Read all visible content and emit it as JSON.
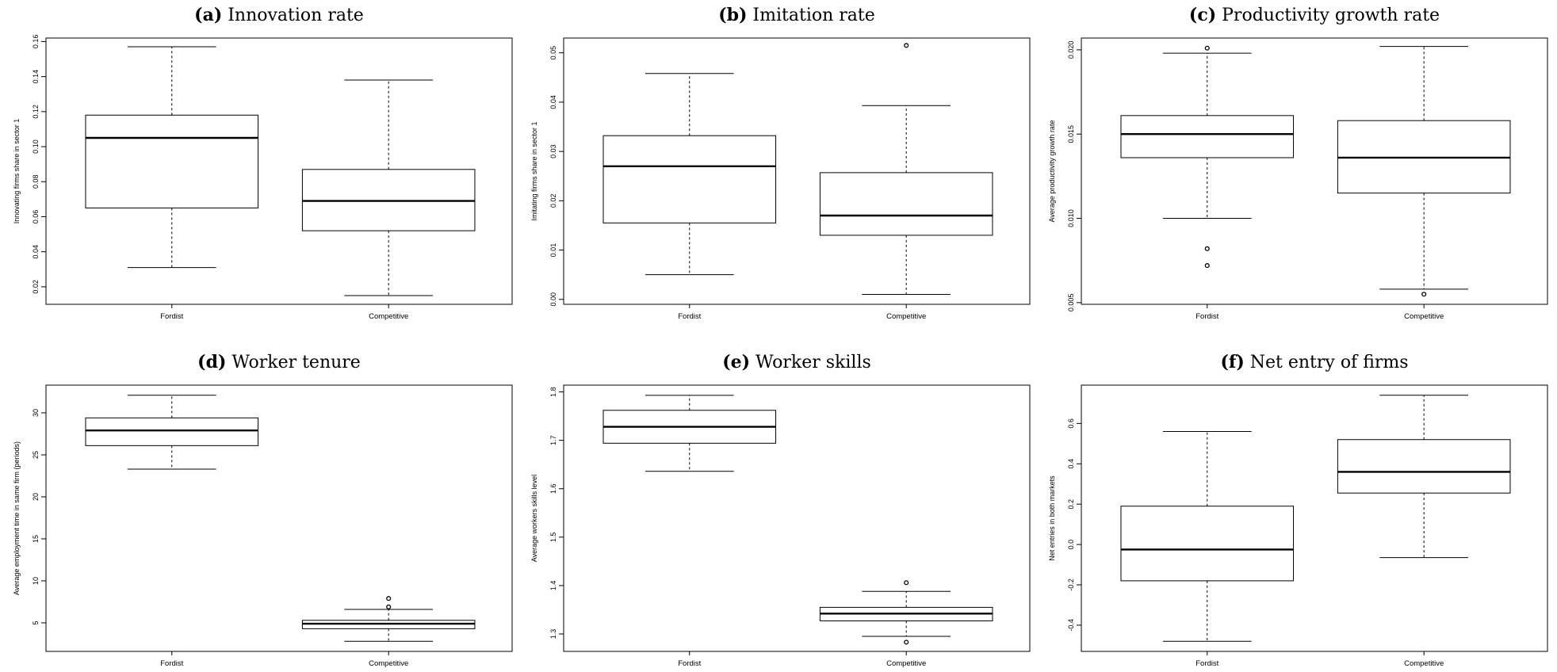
{
  "chart_data": [
    {
      "type": "boxplot",
      "panel": "(a)",
      "title": "Innovation rate",
      "ylabel": "Innovating firms share in sector 1",
      "ylim": [
        0.01,
        0.162
      ],
      "yticks": [
        "0.02",
        "0.04",
        "0.06",
        "0.08",
        "0.10",
        "0.12",
        "0.14",
        "0.16"
      ],
      "categories": [
        "Fordist",
        "Competitive"
      ],
      "boxes": [
        {
          "whisker_low": 0.031,
          "q1": 0.065,
          "median": 0.105,
          "q3": 0.118,
          "whisker_high": 0.157,
          "outliers": []
        },
        {
          "whisker_low": 0.015,
          "q1": 0.052,
          "median": 0.069,
          "q3": 0.087,
          "whisker_high": 0.138,
          "outliers": []
        }
      ]
    },
    {
      "type": "boxplot",
      "panel": "(b)",
      "title": "Imitation rate",
      "ylabel": "Imitating firms share in sector 1",
      "ylim": [
        -0.001,
        0.053
      ],
      "yticks": [
        "0.00",
        "0.01",
        "0.02",
        "0.03",
        "0.04",
        "0.05"
      ],
      "categories": [
        "Fordist",
        "Competitive"
      ],
      "boxes": [
        {
          "whisker_low": 0.005,
          "q1": 0.0155,
          "median": 0.027,
          "q3": 0.0332,
          "whisker_high": 0.0458,
          "outliers": []
        },
        {
          "whisker_low": 0.001,
          "q1": 0.013,
          "median": 0.017,
          "q3": 0.0257,
          "whisker_high": 0.0393,
          "outliers": [
            0.0515
          ]
        }
      ]
    },
    {
      "type": "boxplot",
      "panel": "(c)",
      "title": "Productivity growth rate",
      "ylabel": "Average productivity growth rate",
      "ylim": [
        0.0049,
        0.0207
      ],
      "yticks": [
        "0.005",
        "0.010",
        "0.015",
        "0.020"
      ],
      "categories": [
        "Fordist",
        "Competitive"
      ],
      "boxes": [
        {
          "whisker_low": 0.01,
          "q1": 0.0136,
          "median": 0.015,
          "q3": 0.0161,
          "whisker_high": 0.0198,
          "outliers": [
            0.0201,
            0.0082,
            0.0072
          ]
        },
        {
          "whisker_low": 0.0058,
          "q1": 0.0115,
          "median": 0.0136,
          "q3": 0.0158,
          "whisker_high": 0.0202,
          "outliers": [
            0.0055
          ]
        }
      ]
    },
    {
      "type": "boxplot",
      "panel": "(d)",
      "title": "Worker tenure",
      "ylabel": "Average employment time in same firm (periods)",
      "ylim": [
        1.6,
        33.3
      ],
      "yticks": [
        "5",
        "10",
        "15",
        "20",
        "25",
        "30"
      ],
      "categories": [
        "Fordist",
        "Competitive"
      ],
      "boxes": [
        {
          "whisker_low": 23.3,
          "q1": 26.1,
          "median": 27.9,
          "q3": 29.4,
          "whisker_high": 32.1,
          "outliers": []
        },
        {
          "whisker_low": 2.8,
          "q1": 4.3,
          "median": 4.9,
          "q3": 5.3,
          "whisker_high": 6.6,
          "outliers": [
            7.9,
            6.9
          ]
        }
      ]
    },
    {
      "type": "boxplot",
      "panel": "(e)",
      "title": "Worker skills",
      "ylabel": "Average workers skills level",
      "ylim": [
        1.264,
        1.814
      ],
      "yticks": [
        "1.3",
        "1.4",
        "1.5",
        "1.6",
        "1.7",
        "1.8"
      ],
      "categories": [
        "Fordist",
        "Competitive"
      ],
      "boxes": [
        {
          "whisker_low": 1.636,
          "q1": 1.694,
          "median": 1.728,
          "q3": 1.762,
          "whisker_high": 1.793,
          "outliers": []
        },
        {
          "whisker_low": 1.295,
          "q1": 1.327,
          "median": 1.342,
          "q3": 1.355,
          "whisker_high": 1.388,
          "outliers": [
            1.406,
            1.283
          ]
        }
      ]
    },
    {
      "type": "boxplot",
      "panel": "(f)",
      "title": "Net entry of firms",
      "ylabel": "Net entries in both markets",
      "ylim": [
        -0.53,
        0.79
      ],
      "yticks": [
        "-0.4",
        "-0.2",
        "0.0",
        "0.2",
        "0.4",
        "0.6"
      ],
      "categories": [
        "Fordist",
        "Competitive"
      ],
      "boxes": [
        {
          "whisker_low": -0.48,
          "q1": -0.18,
          "median": -0.025,
          "q3": 0.19,
          "whisker_high": 0.56,
          "outliers": []
        },
        {
          "whisker_low": -0.065,
          "q1": 0.255,
          "median": 0.36,
          "q3": 0.52,
          "whisker_high": 0.74,
          "outliers": []
        }
      ]
    }
  ]
}
